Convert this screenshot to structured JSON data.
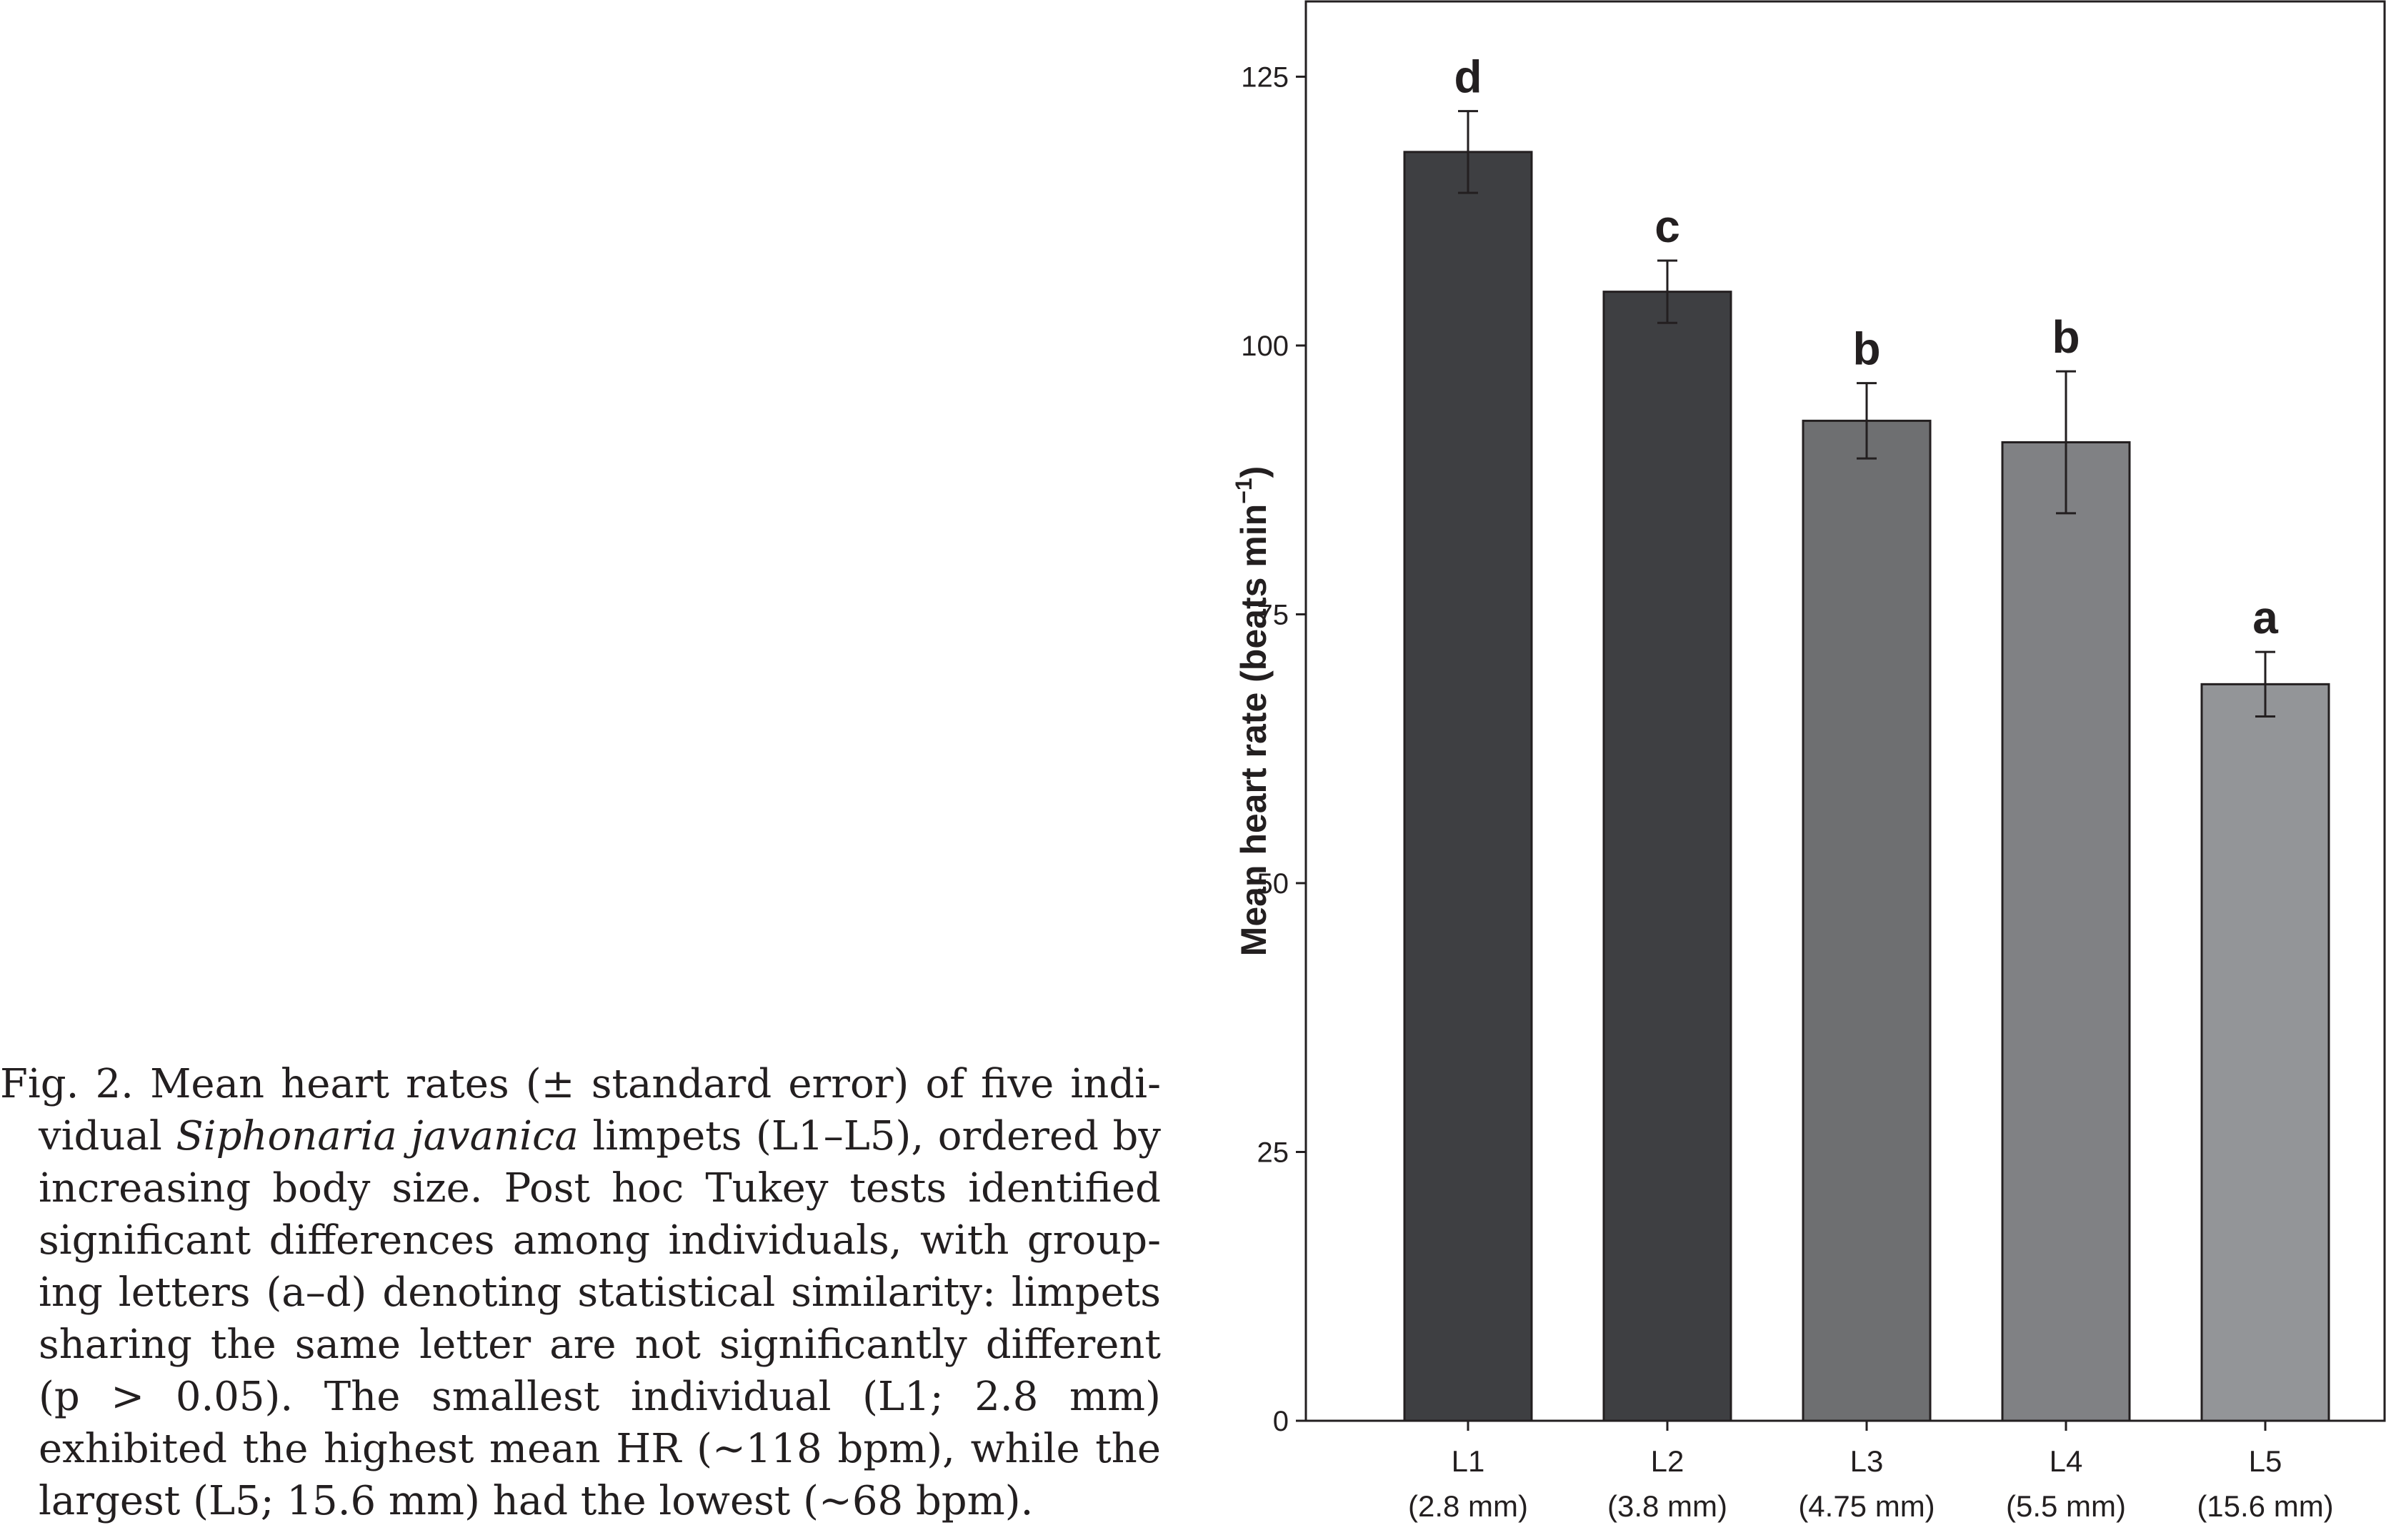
{
  "caption": {
    "prefix": "Fig. 2. Mean heart rates (± standard error) of five indi­vidual ",
    "species": "Siphonaria javanica",
    "rest": " limpets (L1–L5), ordered by increasing body size. Post hoc Tukey tests identified significant differences among individuals, with group­ing letters (a–d) denoting statistical similarity: limpets sharing the same letter are not significantly different (p > 0.05). The smallest individual (L1; 2.8 mm) exhibit­ed the highest mean HR (~118 bpm), while the largest (L5; 15.6 mm) had the lowest (~68 bpm)."
  },
  "chart_data": {
    "type": "bar",
    "title": "",
    "xlabel": "",
    "ylabel": "Mean heart rate (beats min",
    "ylabel_sup": "−1",
    "ylabel_close": ")",
    "ylim": [
      0,
      132
    ],
    "yticks": [
      0,
      25,
      50,
      75,
      100,
      125
    ],
    "grid": false,
    "categories": [
      {
        "name": "L1",
        "size": "(2.8 mm)"
      },
      {
        "name": "L2",
        "size": "(3.8 mm)"
      },
      {
        "name": "L3",
        "size": "(4.75 mm)"
      },
      {
        "name": "L4",
        "size": "(5.5 mm)"
      },
      {
        "name": "L5",
        "size": "(15.6 mm)"
      }
    ],
    "values": [
      118,
      105,
      93,
      91,
      68.5
    ],
    "errors": [
      3.8,
      2.9,
      3.5,
      6.6,
      3.0
    ],
    "significance": [
      "d",
      "c",
      "b",
      "b",
      "a"
    ],
    "colors": [
      "#3e3f42",
      "#3e3f42",
      "#6e6f71",
      "#808184",
      "#939598"
    ]
  }
}
